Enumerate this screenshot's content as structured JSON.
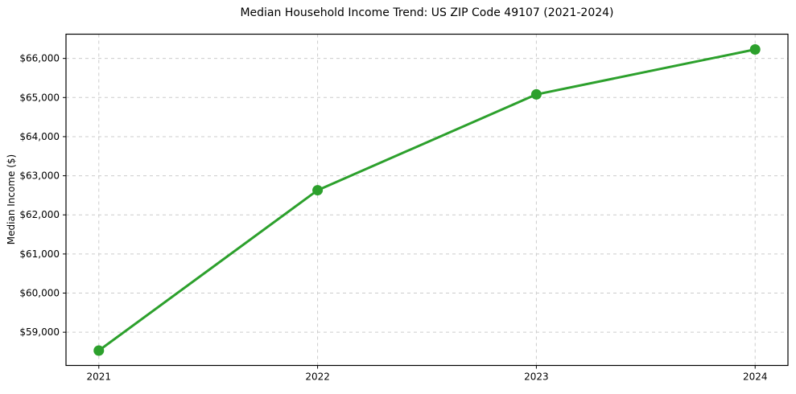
{
  "chart_data": {
    "type": "line",
    "title": "Median Household Income Trend: US ZIP Code 49107 (2021-2024)",
    "xlabel": "",
    "ylabel": "Median Income ($)",
    "series": [
      {
        "name": "Median Household Income",
        "x": [
          2021,
          2022,
          2023,
          2024
        ],
        "values": [
          58530,
          62630,
          65080,
          66230
        ]
      }
    ],
    "xticks": [
      {
        "value": 2021,
        "label": "2021"
      },
      {
        "value": 2022,
        "label": "2022"
      },
      {
        "value": 2023,
        "label": "2023"
      },
      {
        "value": 2024,
        "label": "2024"
      }
    ],
    "yticks": [
      {
        "value": 59000,
        "label": "$59,000"
      },
      {
        "value": 60000,
        "label": "$60,000"
      },
      {
        "value": 61000,
        "label": "$61,000"
      },
      {
        "value": 62000,
        "label": "$62,000"
      },
      {
        "value": 63000,
        "label": "$63,000"
      },
      {
        "value": 64000,
        "label": "$64,000"
      },
      {
        "value": 65000,
        "label": "$65,000"
      },
      {
        "value": 66000,
        "label": "$66,000"
      }
    ],
    "xlim": [
      2020.85,
      2024.15
    ],
    "ylim": [
      58150,
      66620
    ],
    "grid": true,
    "grid_style": "dashed",
    "legend_position": "none",
    "colors": {
      "line": "#2ca02c",
      "marker": "#2ca02c",
      "grid": "#cccccc",
      "spine": "#000000",
      "text": "#000000",
      "background": "#ffffff"
    }
  }
}
